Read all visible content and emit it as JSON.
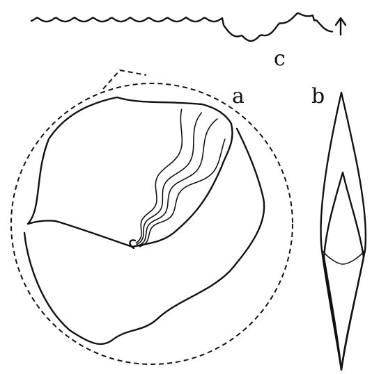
{
  "panels": [
    {
      "label": "c"
    },
    {
      "label": "a"
    },
    {
      "label": "b"
    }
  ]
}
